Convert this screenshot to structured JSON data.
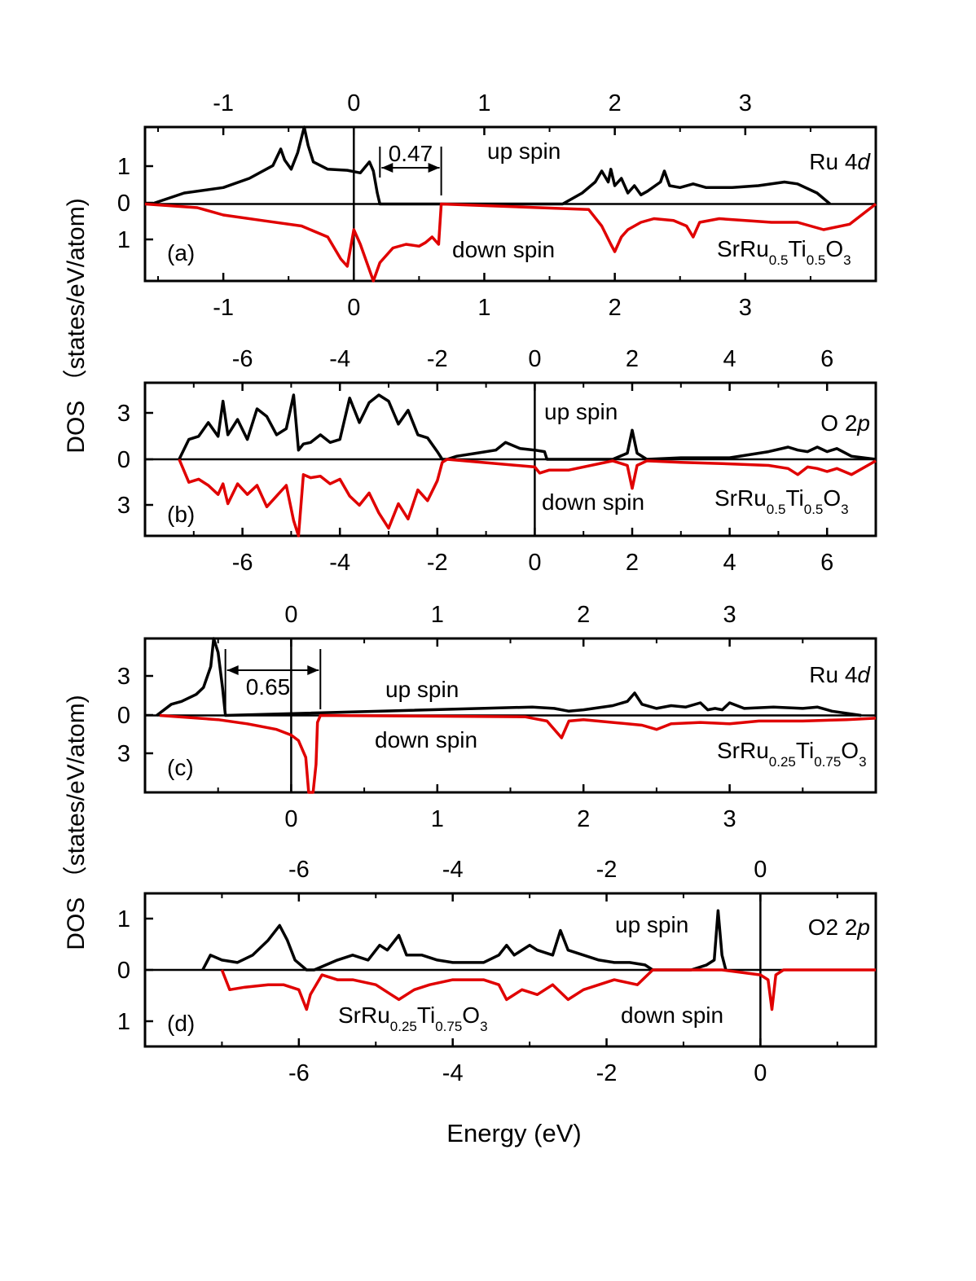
{
  "chart_data": [
    {
      "panel": "(a)",
      "type": "line",
      "xlim": [
        -1.6,
        4.0
      ],
      "ylim": [
        -2.1,
        2.1
      ],
      "x_ticks": [
        -1,
        0,
        1,
        2,
        3
      ],
      "y_tick_labels": [
        "1",
        "0",
        "1"
      ],
      "label": "Ru 4d",
      "label_main": "Ru 4",
      "label_italic": "d",
      "compound_parts": [
        "SrRu",
        "0.5",
        "Ti",
        "0.5",
        "O",
        "3"
      ],
      "up_label": "up spin",
      "down_label": "down spin",
      "gap_label": "0.47",
      "gap_range": [
        0.2,
        0.67
      ],
      "series": [
        {
          "name": "up spin",
          "color": "#000000",
          "x": [
            -1.55,
            -1.3,
            -1.0,
            -0.8,
            -0.62,
            -0.56,
            -0.53,
            -0.48,
            -0.43,
            -0.38,
            -0.35,
            -0.31,
            -0.2,
            -0.05,
            0.05,
            0.12,
            0.15,
            0.18,
            0.2,
            1.6,
            1.75,
            1.85,
            1.9,
            1.95,
            1.97,
            2.0,
            2.05,
            2.1,
            2.15,
            2.2,
            2.25,
            2.35,
            2.38,
            2.42,
            2.5,
            2.6,
            2.7,
            2.9,
            3.1,
            3.3,
            3.4,
            3.55,
            3.65
          ],
          "y": [
            0.0,
            0.3,
            0.45,
            0.7,
            1.05,
            1.5,
            1.2,
            0.95,
            1.4,
            2.1,
            1.6,
            1.15,
            0.95,
            0.92,
            0.85,
            1.15,
            0.9,
            0.3,
            0.0,
            0.0,
            0.3,
            0.6,
            0.9,
            0.6,
            0.95,
            0.5,
            0.7,
            0.3,
            0.5,
            0.25,
            0.35,
            0.6,
            0.9,
            0.5,
            0.45,
            0.55,
            0.45,
            0.45,
            0.5,
            0.6,
            0.55,
            0.3,
            0.0
          ]
        },
        {
          "name": "down spin",
          "color": "#e00000",
          "x": [
            -1.6,
            -1.2,
            -1.0,
            -0.7,
            -0.4,
            -0.2,
            -0.1,
            -0.05,
            0.0,
            0.05,
            0.1,
            0.15,
            0.2,
            0.3,
            0.4,
            0.5,
            0.55,
            0.6,
            0.65,
            0.67,
            1.8,
            1.9,
            1.97,
            2.0,
            2.05,
            2.1,
            2.2,
            2.3,
            2.45,
            2.55,
            2.6,
            2.65,
            2.8,
            3.0,
            3.2,
            3.4,
            3.6,
            3.8,
            4.0
          ],
          "y": [
            0.0,
            -0.1,
            -0.3,
            -0.45,
            -0.6,
            -0.9,
            -1.5,
            -1.7,
            -0.7,
            -1.1,
            -1.6,
            -2.1,
            -1.6,
            -1.2,
            -1.1,
            -1.15,
            -1.05,
            -0.9,
            -1.1,
            0.0,
            -0.15,
            -0.6,
            -1.1,
            -1.3,
            -0.9,
            -0.7,
            -0.5,
            -0.4,
            -0.45,
            -0.6,
            -0.9,
            -0.5,
            -0.4,
            -0.45,
            -0.5,
            -0.5,
            -0.7,
            -0.55,
            0.0
          ]
        }
      ]
    },
    {
      "panel": "(b)",
      "type": "line",
      "xlim": [
        -8,
        7
      ],
      "ylim": [
        -5.0,
        5.0
      ],
      "x_ticks": [
        -6,
        -4,
        -2,
        0,
        2,
        4,
        6
      ],
      "y_tick_labels": [
        "3",
        "0",
        "3"
      ],
      "label": "O 2p",
      "label_main": "O 2",
      "label_italic": "p",
      "compound_parts": [
        "SrRu",
        "0.5",
        "Ti",
        "0.5",
        "O",
        "3"
      ],
      "up_label": "up spin",
      "down_label": "down spin",
      "series": [
        {
          "name": "up spin",
          "color": "#000000",
          "x": [
            -7.3,
            -7.1,
            -6.9,
            -6.7,
            -6.5,
            -6.4,
            -6.3,
            -6.1,
            -5.9,
            -5.7,
            -5.5,
            -5.3,
            -5.1,
            -4.95,
            -4.85,
            -4.75,
            -4.6,
            -4.4,
            -4.2,
            -4.0,
            -3.8,
            -3.6,
            -3.4,
            -3.2,
            -3.0,
            -2.8,
            -2.6,
            -2.4,
            -2.2,
            -2.0,
            -1.9,
            -1.8,
            -1.6,
            -1.2,
            -0.8,
            -0.6,
            -0.3,
            0.0,
            0.2,
            0.25,
            1.6,
            1.9,
            2.0,
            2.1,
            2.3,
            3.0,
            4.0,
            4.8,
            5.2,
            5.4,
            5.6,
            5.8,
            6.0,
            6.2,
            6.5,
            7.0
          ],
          "y": [
            0.0,
            1.3,
            1.5,
            2.4,
            1.5,
            3.8,
            1.6,
            2.6,
            1.3,
            3.3,
            2.8,
            1.6,
            2.0,
            4.2,
            0.6,
            1.0,
            1.1,
            1.6,
            1.1,
            1.3,
            4.0,
            2.4,
            3.7,
            4.2,
            3.8,
            2.3,
            3.2,
            1.6,
            1.4,
            0.5,
            0.0,
            0.0,
            0.2,
            0.4,
            0.6,
            1.1,
            0.7,
            0.6,
            0.5,
            0.0,
            0.0,
            0.4,
            1.9,
            0.4,
            0.0,
            0.1,
            0.1,
            0.5,
            0.8,
            0.6,
            0.5,
            0.8,
            0.5,
            0.7,
            0.2,
            0.0
          ]
        },
        {
          "name": "down spin",
          "color": "#e00000",
          "x": [
            -7.3,
            -7.1,
            -6.9,
            -6.7,
            -6.5,
            -6.4,
            -6.3,
            -6.1,
            -5.9,
            -5.7,
            -5.5,
            -5.3,
            -5.1,
            -4.95,
            -4.85,
            -4.75,
            -4.6,
            -4.4,
            -4.2,
            -4.0,
            -3.8,
            -3.6,
            -3.4,
            -3.2,
            -3.0,
            -2.8,
            -2.6,
            -2.4,
            -2.2,
            -2.0,
            -1.9,
            -1.8,
            0.0,
            0.1,
            0.3,
            0.7,
            1.6,
            1.9,
            2.0,
            2.1,
            2.3,
            3.0,
            4.0,
            4.8,
            5.2,
            5.4,
            5.6,
            5.8,
            6.0,
            6.2,
            6.5,
            7.0
          ],
          "y": [
            0.0,
            -1.5,
            -1.3,
            -1.7,
            -2.3,
            -1.6,
            -2.9,
            -1.6,
            -2.3,
            -1.7,
            -3.1,
            -2.4,
            -1.7,
            -4.0,
            -5.0,
            -1.0,
            -1.2,
            -1.1,
            -1.6,
            -1.3,
            -2.4,
            -3.0,
            -2.2,
            -3.5,
            -4.5,
            -2.9,
            -3.9,
            -2.0,
            -2.7,
            -1.4,
            -0.2,
            0.0,
            -0.5,
            -0.9,
            -0.7,
            -0.7,
            -0.1,
            -0.4,
            -1.9,
            -0.4,
            -0.1,
            -0.2,
            -0.3,
            -0.4,
            -0.6,
            -1.0,
            -0.5,
            -0.6,
            -0.8,
            -0.6,
            -1.0,
            -0.1
          ]
        }
      ]
    },
    {
      "panel": "(c)",
      "type": "line",
      "xlim": [
        -1.0,
        4.0
      ],
      "ylim": [
        -5.5,
        5.5
      ],
      "x_ticks": [
        0,
        1,
        2,
        3
      ],
      "y_tick_labels": [
        "3",
        "0",
        "3"
      ],
      "label": "Ru 4d",
      "label_main": "Ru 4",
      "label_italic": "d",
      "compound_parts": [
        "SrRu",
        "0.25",
        "Ti",
        "0.75",
        "O",
        "3"
      ],
      "up_label": "up spin",
      "down_label": "down spin",
      "gap_label": "0.65",
      "gap_range": [
        -0.45,
        0.2
      ],
      "series": [
        {
          "name": "up spin",
          "color": "#000000",
          "x": [
            -0.92,
            -0.82,
            -0.75,
            -0.65,
            -0.6,
            -0.55,
            -0.53,
            -0.5,
            -0.47,
            -0.45,
            1.65,
            1.8,
            1.9,
            2.0,
            2.2,
            2.3,
            2.35,
            2.4,
            2.5,
            2.6,
            2.7,
            2.8,
            2.85,
            2.9,
            2.95,
            3.0,
            3.1,
            3.3,
            3.5,
            3.6,
            3.7,
            3.9
          ],
          "y": [
            0.0,
            0.8,
            1.0,
            1.5,
            2.0,
            3.5,
            5.5,
            4.5,
            2.0,
            0.0,
            0.6,
            0.5,
            0.3,
            0.4,
            0.7,
            1.0,
            1.6,
            0.8,
            0.5,
            0.7,
            0.6,
            0.9,
            0.4,
            0.5,
            0.4,
            0.9,
            0.5,
            0.6,
            0.5,
            0.6,
            0.3,
            0.0
          ]
        },
        {
          "name": "down spin",
          "color": "#e00000",
          "x": [
            -0.9,
            -0.5,
            -0.3,
            -0.1,
            0.0,
            0.05,
            0.1,
            0.12,
            0.15,
            0.17,
            0.18,
            0.2,
            1.6,
            1.75,
            1.85,
            1.9,
            2.0,
            2.2,
            2.4,
            2.5,
            2.6,
            2.8,
            3.0,
            3.2,
            3.5,
            3.8,
            4.0
          ],
          "y": [
            0.0,
            -0.3,
            -0.6,
            -1.0,
            -1.4,
            -1.8,
            -3.0,
            -5.5,
            -5.5,
            -3.5,
            -0.5,
            0.0,
            -0.1,
            -0.4,
            -1.6,
            -0.4,
            -0.3,
            -0.5,
            -0.7,
            -1.0,
            -0.6,
            -0.5,
            -0.6,
            -0.4,
            -0.4,
            -0.3,
            -0.2
          ]
        }
      ]
    },
    {
      "panel": "(d)",
      "type": "line",
      "xlim": [
        -8.0,
        1.5
      ],
      "ylim": [
        -1.55,
        1.55
      ],
      "x_ticks": [
        -6,
        -4,
        -2,
        0
      ],
      "y_tick_labels": [
        "1",
        "0",
        "1"
      ],
      "label": "O2 2p",
      "label_main": "O2 2",
      "label_italic": "p",
      "compound_parts": [
        "SrRu",
        "0.25",
        "Ti",
        "0.75",
        "O",
        "3"
      ],
      "up_label": "up spin",
      "down_label": "down spin",
      "series": [
        {
          "name": "up spin",
          "color": "#000000",
          "x": [
            -7.25,
            -7.15,
            -7.0,
            -6.8,
            -6.6,
            -6.4,
            -6.25,
            -6.15,
            -6.05,
            -5.9,
            -5.8,
            -5.5,
            -5.3,
            -5.1,
            -4.95,
            -4.85,
            -4.7,
            -4.6,
            -4.4,
            -4.2,
            -4.0,
            -3.8,
            -3.6,
            -3.4,
            -3.3,
            -3.2,
            -3.0,
            -2.9,
            -2.7,
            -2.6,
            -2.5,
            -2.3,
            -2.1,
            -1.9,
            -1.7,
            -1.5,
            -1.4,
            -0.9,
            -0.7,
            -0.6,
            -0.55,
            -0.5,
            -0.45
          ],
          "y": [
            0.0,
            0.3,
            0.2,
            0.15,
            0.3,
            0.6,
            0.9,
            0.6,
            0.2,
            0.0,
            0.0,
            0.2,
            0.3,
            0.2,
            0.5,
            0.4,
            0.7,
            0.3,
            0.3,
            0.2,
            0.15,
            0.15,
            0.15,
            0.3,
            0.5,
            0.3,
            0.5,
            0.4,
            0.3,
            0.8,
            0.4,
            0.3,
            0.2,
            0.15,
            0.15,
            0.1,
            0.0,
            0.0,
            0.1,
            0.2,
            1.2,
            0.3,
            0.0
          ]
        },
        {
          "name": "down spin",
          "color": "#e00000",
          "x": [
            -7.0,
            -6.9,
            -6.7,
            -6.4,
            -6.2,
            -6.0,
            -5.9,
            -5.85,
            -5.7,
            -5.5,
            -5.3,
            -5.0,
            -4.8,
            -4.7,
            -4.5,
            -4.3,
            -4.0,
            -3.6,
            -3.4,
            -3.3,
            -3.1,
            -2.9,
            -2.7,
            -2.5,
            -2.3,
            -2.1,
            -1.9,
            -1.6,
            -1.4,
            -0.5,
            0.0,
            0.1,
            0.15,
            0.2,
            0.3,
            1.5
          ],
          "y": [
            0.0,
            -0.4,
            -0.35,
            -0.3,
            -0.3,
            -0.4,
            -0.8,
            -0.5,
            -0.1,
            -0.2,
            -0.2,
            -0.3,
            -0.5,
            -0.6,
            -0.4,
            -0.3,
            -0.2,
            -0.2,
            -0.3,
            -0.6,
            -0.4,
            -0.5,
            -0.3,
            -0.6,
            -0.4,
            -0.3,
            -0.2,
            -0.3,
            0.0,
            0.0,
            -0.1,
            -0.2,
            -0.8,
            -0.1,
            0.0,
            0.0
          ]
        }
      ]
    }
  ],
  "y_axis_label": "DOS （states/eV/atom)",
  "x_axis_label": "Energy (eV)"
}
